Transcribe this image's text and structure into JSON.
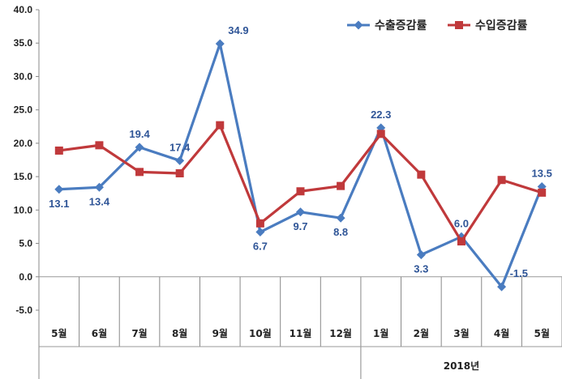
{
  "chart_data": {
    "type": "line",
    "title": "",
    "xlabel": "",
    "ylabel": "",
    "categories": [
      "5월",
      "6월",
      "7월",
      "8월",
      "9월",
      "10월",
      "11월",
      "12월",
      "1월",
      "2월",
      "3월",
      "4월",
      "5월"
    ],
    "year_group_label": "2018년",
    "ylim": [
      -5.0,
      40.0
    ],
    "yticks": [
      "40.0",
      "35.0",
      "30.0",
      "25.0",
      "20.0",
      "15.0",
      "10.0",
      "5.0",
      "0.0",
      "-5.0"
    ],
    "legend_position": "top-right",
    "series": [
      {
        "name": "수출증감률",
        "color": "#4a7cc0",
        "marker": "diamond",
        "values": [
          13.1,
          13.4,
          19.4,
          17.4,
          34.9,
          6.7,
          9.7,
          8.8,
          22.3,
          3.3,
          6.0,
          -1.5,
          13.5
        ],
        "labels": [
          "13.1",
          "13.4",
          "19.4",
          "17.4",
          "34.9",
          "6.7",
          "9.7",
          "8.8",
          "22.3",
          "3.3",
          "6.0",
          "-1.5",
          "13.5"
        ]
      },
      {
        "name": "수입증감률",
        "color": "#c0393b",
        "marker": "square",
        "values": [
          18.9,
          19.7,
          15.7,
          15.5,
          22.7,
          8.0,
          12.8,
          13.6,
          21.4,
          15.3,
          5.3,
          14.5,
          12.6
        ]
      }
    ]
  }
}
